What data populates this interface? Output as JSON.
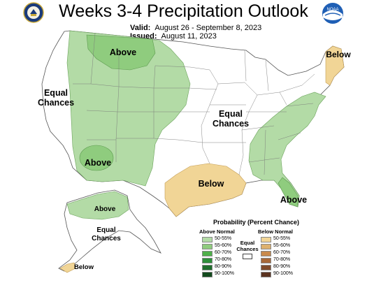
{
  "header": {
    "title": "Weeks 3-4 Precipitation Outlook",
    "valid_label": "Valid:",
    "valid_value": "August 26 - September 8, 2023",
    "issued_label": "Issued:",
    "issued_value": "August 11, 2023",
    "noaa_text": "NOAA"
  },
  "map_labels": {
    "above_north": "Above",
    "above_sw": "Above",
    "above_alaska": "Above",
    "above_florida": "Above",
    "below_maine": "Below",
    "below_texas": "Below",
    "below_alaska": "Below",
    "equal_west_1": "Equal",
    "equal_west_2": "Chances",
    "equal_center_1": "Equal",
    "equal_center_2": "Chances",
    "equal_alaska_1": "Equal",
    "equal_alaska_2": "Chances"
  },
  "legend": {
    "title": "Probability (Percent Chance)",
    "above_header": "Above Normal",
    "below_header": "Below Normal",
    "equal_1": "Equal",
    "equal_2": "Chances",
    "rows": [
      "50-55%",
      "55-60%",
      "60-70%",
      "70-80%",
      "80-90%",
      "90-100%"
    ],
    "above_colors": [
      "#b3dba6",
      "#8fcc7e",
      "#4fb04a",
      "#2e8f3a",
      "#1f6e2c",
      "#124a1d"
    ],
    "below_colors": [
      "#f1d596",
      "#ddb16e",
      "#c98a4c",
      "#a76838",
      "#7f4a2a",
      "#5a321f"
    ]
  },
  "colors": {
    "above_light": "#b3dba6",
    "above_mid": "#8fcc7e",
    "below_light": "#f1d596",
    "border": "#555555"
  }
}
